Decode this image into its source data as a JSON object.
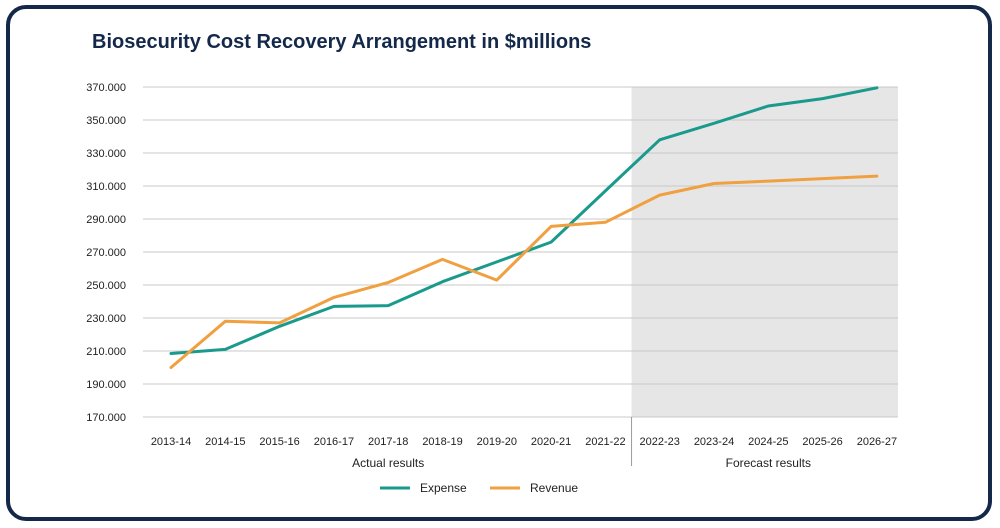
{
  "chart_data": {
    "type": "line",
    "title": "Biosecurity Cost Recovery Arrangement in $millions",
    "categories": [
      "2013-14",
      "2014-15",
      "2015-16",
      "2016-17",
      "2017-18",
      "2018-19",
      "2019-20",
      "2020-21",
      "2021-22",
      "2022-23",
      "2023-24",
      "2024-25",
      "2025-26",
      "2026-27"
    ],
    "y_ticks": [
      "170.000",
      "190.000",
      "210.000",
      "230.000",
      "250.000",
      "270.000",
      "290.000",
      "310.000",
      "330.000",
      "350.000",
      "370.000"
    ],
    "ylim": [
      170,
      370
    ],
    "series": [
      {
        "name": "Expense",
        "color": "#1a9a8c",
        "values": [
          208.5,
          211,
          225,
          237,
          237.5,
          252,
          264,
          276,
          307,
          338,
          348,
          358.5,
          363,
          369.5
        ]
      },
      {
        "name": "Revenue",
        "color": "#f0a040",
        "values": [
          200,
          228,
          227,
          242.5,
          251.5,
          265.5,
          253,
          285.5,
          288,
          304.5,
          311.5,
          313,
          314.5,
          316
        ]
      }
    ],
    "groups": [
      {
        "label": "Actual results",
        "from": 0,
        "to": 8
      },
      {
        "label": "Forecast results",
        "from": 9,
        "to": 13,
        "shaded": true,
        "shade_color": "#e7e6e6"
      }
    ],
    "grid": true,
    "legend": "bottom"
  }
}
